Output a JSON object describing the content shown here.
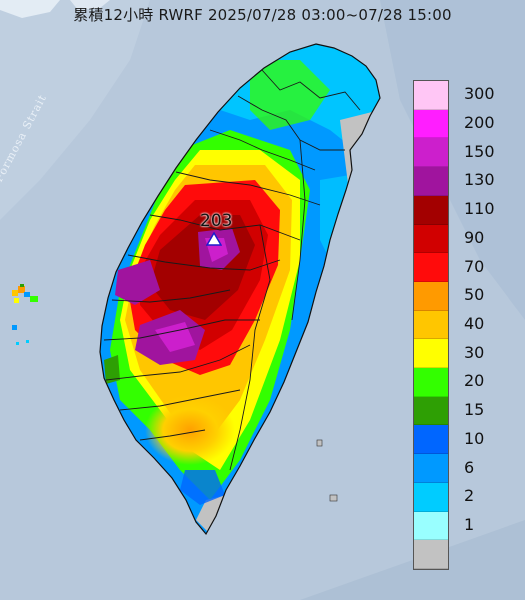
{
  "title": "累積12小時 RWRF 2025/07/28 03:00~07/28 15:00",
  "strait_label": "Formosa Strait",
  "peak": {
    "value": "203"
  },
  "legend": {
    "levels": [
      {
        "label": "300",
        "color": "#ffc6f5"
      },
      {
        "label": "200",
        "color": "#ff1eff"
      },
      {
        "label": "150",
        "color": "#cc1fcc"
      },
      {
        "label": "130",
        "color": "#a0149e"
      },
      {
        "label": "110",
        "color": "#a30000"
      },
      {
        "label": "90",
        "color": "#d10000"
      },
      {
        "label": "70",
        "color": "#ff0b0b"
      },
      {
        "label": "50",
        "color": "#ff9a00"
      },
      {
        "label": "40",
        "color": "#ffc600"
      },
      {
        "label": "30",
        "color": "#ffff00"
      },
      {
        "label": "20",
        "color": "#33ff00"
      },
      {
        "label": "15",
        "color": "#2e9f04"
      },
      {
        "label": "10",
        "color": "#0066ff"
      },
      {
        "label": "6",
        "color": "#0099ff"
      },
      {
        "label": "2",
        "color": "#00ccff"
      },
      {
        "label": "1",
        "color": "#99ffff"
      },
      {
        "label": "",
        "color": "#c2c2c2"
      }
    ]
  }
}
